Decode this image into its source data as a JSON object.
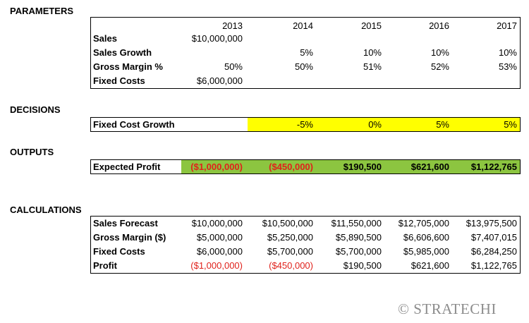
{
  "colors": {
    "decision_fill": "#ffff00",
    "output_fill": "#8cc540",
    "negative": "#e0211b",
    "logo": "#8c8c8c"
  },
  "parameters": {
    "title": "PARAMETERS",
    "years": [
      "2013",
      "2014",
      "2015",
      "2016",
      "2017"
    ],
    "rows": [
      {
        "label": "Sales",
        "values": [
          "$10,000,000",
          "",
          "",
          "",
          ""
        ]
      },
      {
        "label": "Sales Growth",
        "values": [
          "",
          "5%",
          "10%",
          "10%",
          "10%"
        ]
      },
      {
        "label": "Gross Margin %",
        "values": [
          "50%",
          "50%",
          "51%",
          "52%",
          "53%"
        ]
      },
      {
        "label": "Fixed Costs",
        "values": [
          "$6,000,000",
          "",
          "",
          "",
          ""
        ]
      }
    ]
  },
  "decisions": {
    "title": "DECISIONS",
    "label": "Fixed Cost Growth",
    "values": [
      "",
      "-5%",
      "0%",
      "5%",
      "5%"
    ]
  },
  "outputs": {
    "title": "OUTPUTS",
    "label": "Expected Profit",
    "values": [
      "($1,000,000)",
      "($450,000)",
      "$190,500",
      "$621,600",
      "$1,122,765"
    ]
  },
  "calculations": {
    "title": "CALCULATIONS",
    "rows": [
      {
        "label": "Sales Forecast",
        "values": [
          "$10,000,000",
          "$10,500,000",
          "$11,550,000",
          "$12,705,000",
          "$13,975,500"
        ]
      },
      {
        "label": "Gross Margin ($)",
        "values": [
          "$5,000,000",
          "$5,250,000",
          "$5,890,500",
          "$6,606,600",
          "$7,407,015"
        ]
      },
      {
        "label": "Fixed Costs",
        "values": [
          "$6,000,000",
          "$5,700,000",
          "$5,700,000",
          "$5,985,000",
          "$6,284,250"
        ]
      },
      {
        "label": "Profit",
        "values": [
          "($1,000,000)",
          "($450,000)",
          "$190,500",
          "$621,600",
          "$1,122,765"
        ]
      }
    ]
  },
  "logo": {
    "text": "© STRATECHI"
  }
}
